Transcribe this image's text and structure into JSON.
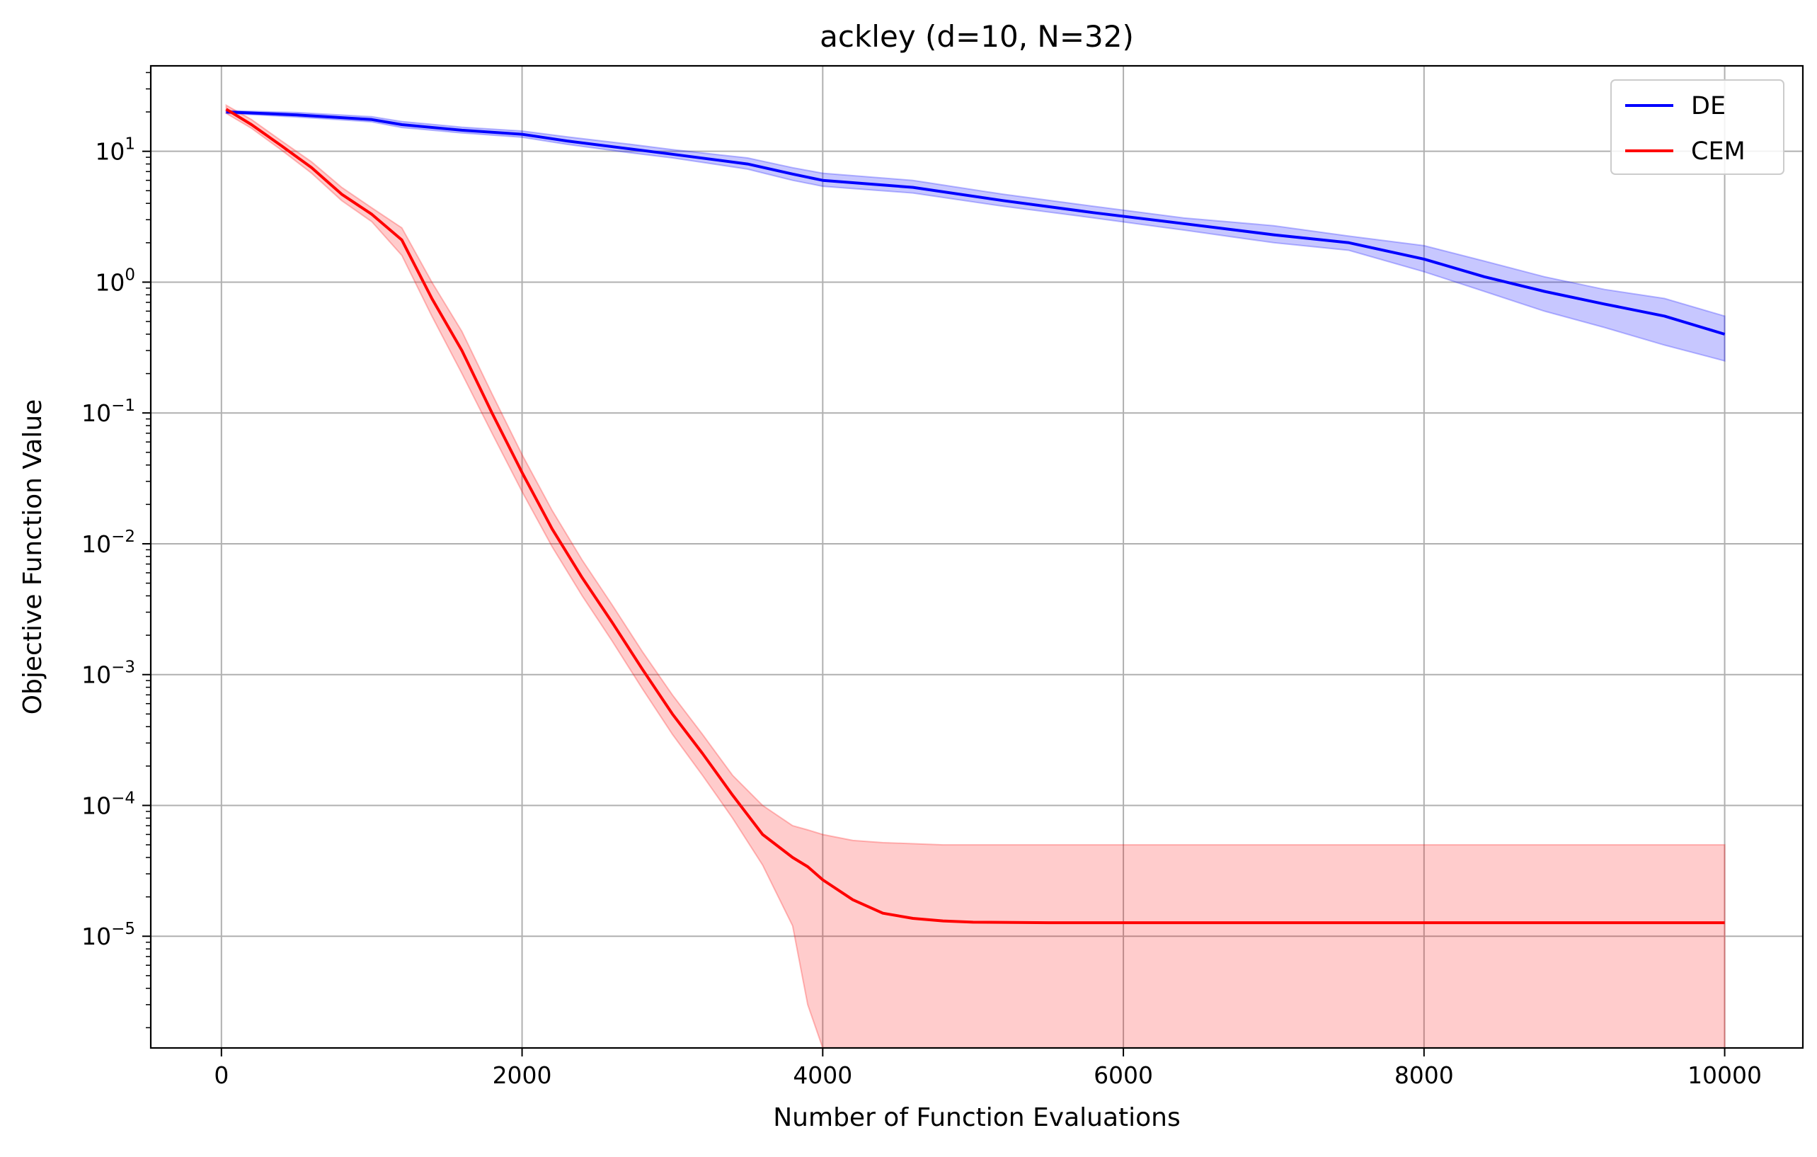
{
  "chart_data": {
    "type": "line",
    "title": "ackley (d=10, N=32)",
    "xlabel": "Number of Function Evaluations",
    "ylabel": "Objective Function Value",
    "xscale": "linear",
    "yscale": "log",
    "xlim": [
      -470,
      10520
    ],
    "ylim": [
      1.4e-06,
      45
    ],
    "xticks": [
      0,
      2000,
      4000,
      6000,
      8000,
      10000
    ],
    "xtick_labels": [
      "0",
      "2000",
      "4000",
      "6000",
      "8000",
      "10000"
    ],
    "yticks": [
      1e-05,
      0.0001,
      0.001,
      0.01,
      0.1,
      1,
      10
    ],
    "ytick_labels": [
      {
        "base": "10",
        "exp": "−5"
      },
      {
        "base": "10",
        "exp": "−4"
      },
      {
        "base": "10",
        "exp": "−3"
      },
      {
        "base": "10",
        "exp": "−2"
      },
      {
        "base": "10",
        "exp": "−1"
      },
      {
        "base": "10",
        "exp": "0"
      },
      {
        "base": "10",
        "exp": "1"
      }
    ],
    "grid": true,
    "legend_position": "top-right",
    "series": [
      {
        "name": "DE",
        "color": "#0000ff",
        "band_color": "#0000ff",
        "band_opacity": 0.22,
        "x": [
          32,
          500,
          1000,
          1200,
          1600,
          2000,
          2300,
          2700,
          3000,
          3500,
          3800,
          4000,
          4600,
          5200,
          5800,
          6400,
          7000,
          7500,
          8000,
          8400,
          8800,
          9200,
          9600,
          10000
        ],
        "y": [
          20,
          19,
          17.5,
          16,
          14.5,
          13.5,
          12,
          10.5,
          9.5,
          8,
          6.7,
          6,
          5.3,
          4.2,
          3.4,
          2.8,
          2.3,
          2.0,
          1.5,
          1.1,
          0.85,
          0.68,
          0.55,
          0.4
        ],
        "low": [
          19.5,
          18.3,
          16.8,
          15.2,
          13.8,
          12.8,
          11.3,
          9.8,
          8.9,
          7.3,
          6.0,
          5.4,
          4.8,
          3.8,
          3.1,
          2.5,
          2.0,
          1.75,
          1.2,
          0.85,
          0.6,
          0.45,
          0.33,
          0.25
        ],
        "high": [
          20.5,
          19.8,
          18.4,
          16.9,
          15.3,
          14.3,
          12.9,
          11.4,
          10.3,
          8.9,
          7.5,
          6.8,
          6.0,
          4.7,
          3.8,
          3.1,
          2.7,
          2.25,
          1.9,
          1.45,
          1.1,
          0.88,
          0.75,
          0.55
        ]
      },
      {
        "name": "CEM",
        "color": "#ff0000",
        "band_color": "#ff0000",
        "band_opacity": 0.2,
        "x": [
          32,
          200,
          400,
          600,
          800,
          1000,
          1200,
          1400,
          1600,
          1800,
          2000,
          2200,
          2400,
          2600,
          2800,
          3000,
          3200,
          3400,
          3600,
          3800,
          3900,
          4000,
          4200,
          4400,
          4600,
          4800,
          5000,
          5500,
          6000,
          7000,
          8000,
          9000,
          10000
        ],
        "y": [
          21,
          16,
          11,
          7.5,
          4.7,
          3.3,
          2.1,
          0.75,
          0.3,
          0.1,
          0.035,
          0.013,
          0.0055,
          0.0025,
          0.0011,
          0.0005,
          0.00025,
          0.00012,
          6e-05,
          4e-05,
          3.4e-05,
          2.7e-05,
          1.9e-05,
          1.5e-05,
          1.37e-05,
          1.31e-05,
          1.28e-05,
          1.27e-05,
          1.27e-05,
          1.27e-05,
          1.27e-05,
          1.27e-05,
          1.27e-05
        ],
        "low": [
          19.5,
          15,
          10.2,
          6.8,
          4.2,
          2.9,
          1.6,
          0.55,
          0.2,
          0.07,
          0.025,
          0.0095,
          0.004,
          0.0018,
          0.00078,
          0.00035,
          0.00017,
          8e-05,
          3.5e-05,
          1.2e-05,
          3e-06,
          1.4e-06,
          1.4e-06,
          1.4e-06,
          1.4e-06,
          1.4e-06,
          1.4e-06,
          1.4e-06,
          1.4e-06,
          1.4e-06,
          1.4e-06,
          1.4e-06,
          1.4e-06
        ],
        "high": [
          22.5,
          17.5,
          12,
          8.3,
          5.3,
          3.7,
          2.6,
          1.0,
          0.42,
          0.14,
          0.048,
          0.018,
          0.0075,
          0.0034,
          0.0015,
          0.0007,
          0.00035,
          0.00017,
          0.0001,
          7e-05,
          6.5e-05,
          6e-05,
          5.4e-05,
          5.2e-05,
          5.1e-05,
          5e-05,
          5e-05,
          5e-05,
          5e-05,
          5e-05,
          5e-05,
          5e-05,
          5e-05
        ]
      }
    ]
  }
}
